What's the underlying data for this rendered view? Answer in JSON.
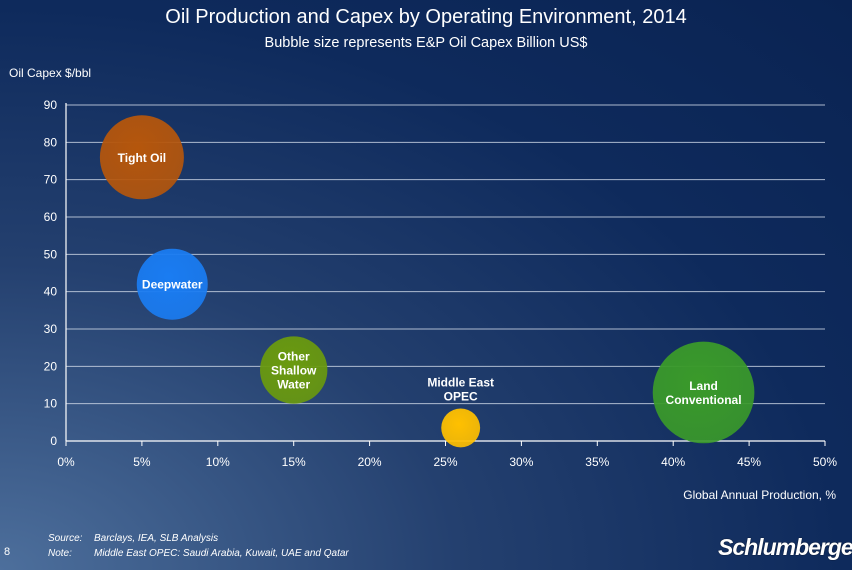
{
  "chart_data": {
    "type": "bubble",
    "title": "Oil Production and Capex by Operating Environment, 2014",
    "subtitle": "Bubble size represents E&P Oil Capex Billion US$",
    "ylabel": "Oil Capex $/bbl",
    "xlabel": "Global Annual Production, %",
    "xlim": [
      0,
      50
    ],
    "ylim": [
      0,
      90
    ],
    "x_ticks": [
      "0%",
      "5%",
      "10%",
      "15%",
      "20%",
      "25%",
      "30%",
      "35%",
      "40%",
      "45%",
      "50%"
    ],
    "y_ticks": [
      "0",
      "10",
      "20",
      "30",
      "40",
      "50",
      "60",
      "70",
      "80",
      "90"
    ],
    "grid": true,
    "points": [
      {
        "label": [
          "Tight Oil"
        ],
        "x": 5,
        "y": 76,
        "size": 140,
        "color": "#b5560c",
        "label_pos": "inside"
      },
      {
        "label": [
          "Deepwater"
        ],
        "x": 7,
        "y": 42,
        "size": 100,
        "color": "#1a7cf2",
        "label_pos": "inside"
      },
      {
        "label": [
          "Other",
          "Shallow",
          "Water"
        ],
        "x": 15,
        "y": 19,
        "size": 90,
        "color": "#6a9a0e",
        "label_pos": "inside"
      },
      {
        "label": [
          "Middle East",
          "OPEC"
        ],
        "x": 26,
        "y": 3.5,
        "size": 30,
        "color": "#ffc000",
        "label_pos": "above"
      },
      {
        "label": [
          "Land",
          "Conventional"
        ],
        "x": 42,
        "y": 13,
        "size": 205,
        "color": "#3a9a2a",
        "label_pos": "inside"
      }
    ]
  },
  "footnotes": {
    "source_key": "Source:",
    "source_val": "Barclays, IEA, SLB Analysis",
    "note_key": "Note:",
    "note_val": "Middle East OPEC: Saudi Arabia, Kuwait, UAE and Qatar"
  },
  "page_number": "8",
  "logo_text": "Schlumberger"
}
